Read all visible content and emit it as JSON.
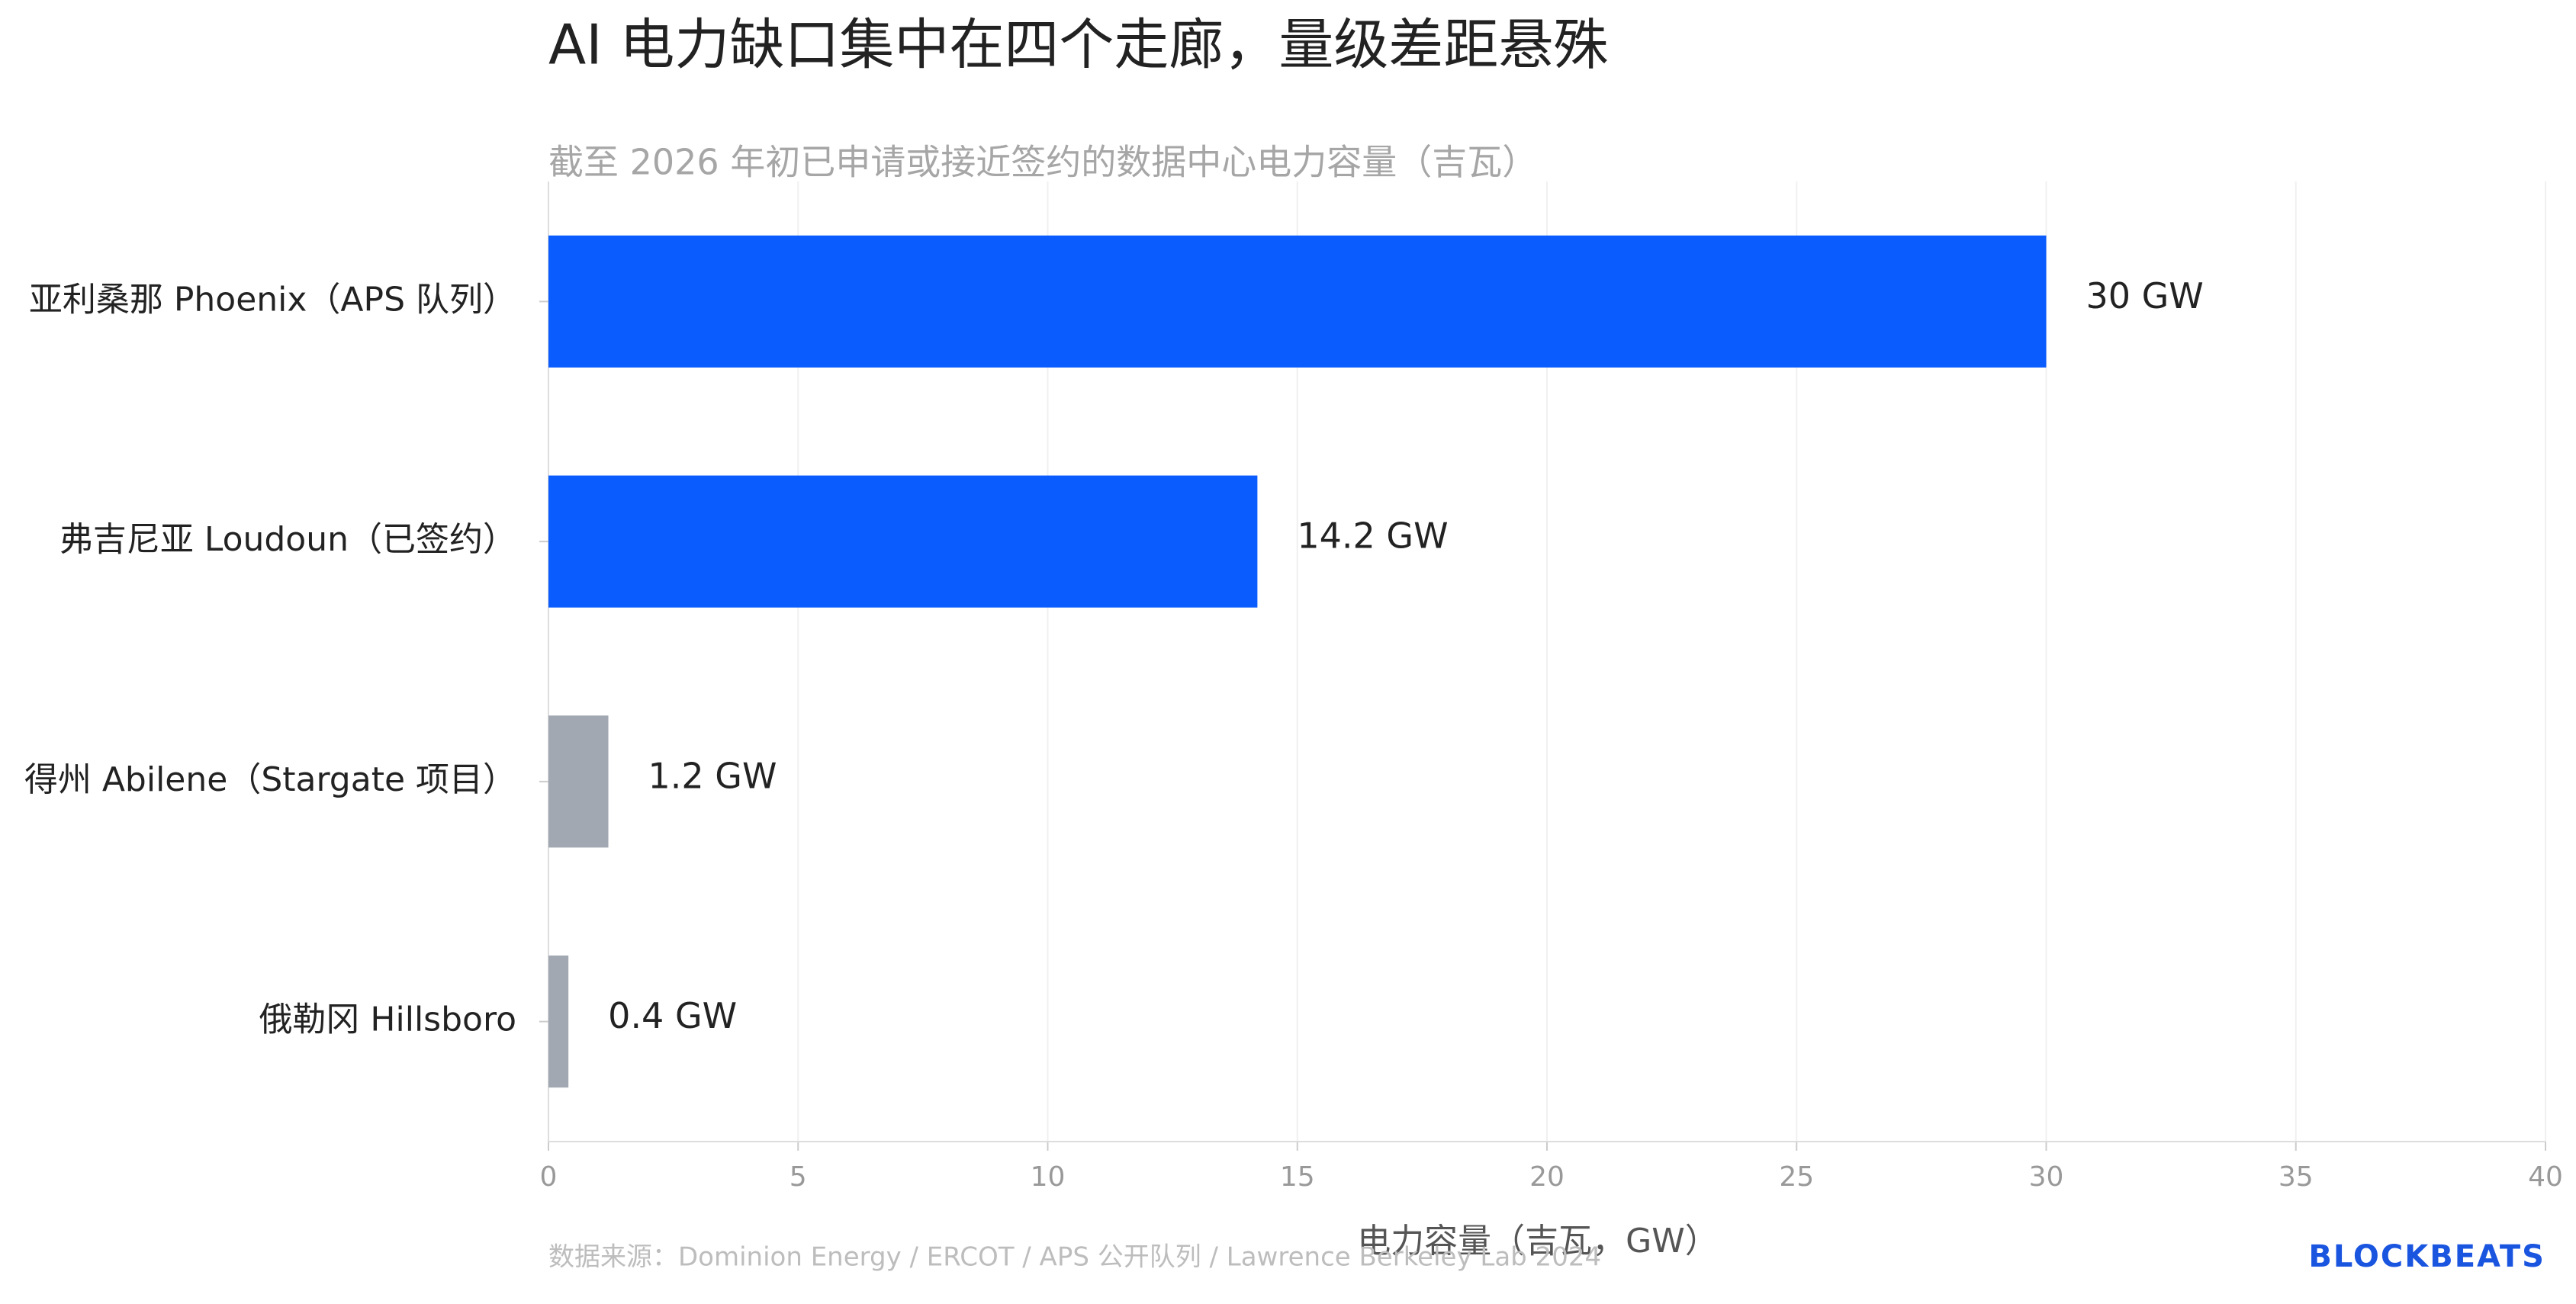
{
  "chart_data": {
    "type": "hbar",
    "title": "AI 电力缺口集中在四个走廊，量级差距悬殊",
    "subtitle": "截至 2026 年初已申请或接近签约的数据中心电力容量（吉瓦）",
    "categories": [
      "亚利桑那 Phoenix（APS 队列）",
      "弗吉尼亚 Loudoun（已签约）",
      "得州 Abilene（Stargate 项目）",
      "俄勒冈 Hillsboro"
    ],
    "values": [
      30,
      14.2,
      1.2,
      0.4
    ],
    "value_labels": [
      "30 GW",
      "14.2 GW",
      "1.2 GW",
      "0.4 GW"
    ],
    "colors": [
      "#0a5cff",
      "#0a5cff",
      "#a1a8b2",
      "#a1a8b2"
    ],
    "xlim": [
      0,
      40
    ],
    "xticks": [
      0,
      5,
      10,
      15,
      20,
      25,
      30,
      35,
      40
    ],
    "xlabel": "电力容量（吉瓦，GW）",
    "grid": true,
    "source": "数据来源：Dominion Energy / ERCOT / APS 公开队列 / Lawrence Berkeley Lab 2024",
    "logo": "BLOCKBEATS"
  }
}
